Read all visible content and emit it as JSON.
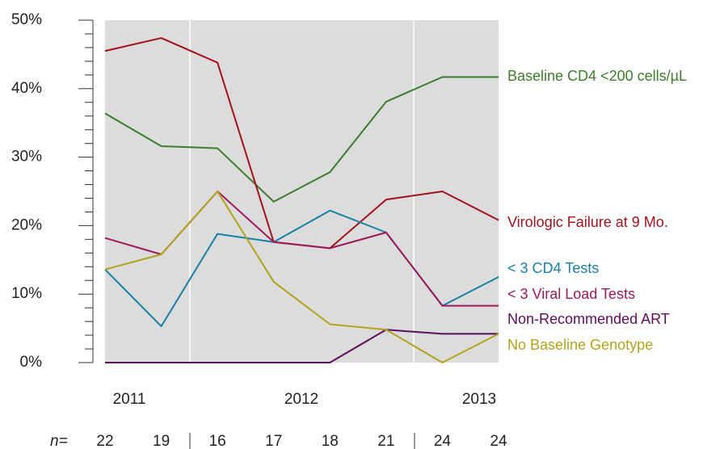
{
  "chart_data": {
    "type": "line",
    "categories": [
      null,
      null,
      null,
      null,
      null,
      null,
      null,
      null
    ],
    "year_labels": [
      "2011",
      "2012",
      "2013"
    ],
    "n_label": "n=",
    "n_values": [
      22,
      19,
      16,
      17,
      18,
      21,
      24,
      24
    ],
    "ylim": [
      0,
      50
    ],
    "yticks": [
      {
        "value": 0,
        "label": "0%"
      },
      {
        "value": 10,
        "label": "10%"
      },
      {
        "value": 20,
        "label": "20%"
      },
      {
        "value": 30,
        "label": "30%"
      },
      {
        "value": 40,
        "label": "40%"
      },
      {
        "value": 50,
        "label": "50%"
      }
    ],
    "minor_yticks": [
      2,
      4,
      6,
      8,
      12,
      14,
      16,
      18,
      22,
      24,
      26,
      28,
      32,
      34,
      36,
      38,
      42,
      44,
      46,
      48
    ],
    "grid": false,
    "series": [
      {
        "name": "Baseline CD4 <200 cells/µL",
        "color": "#3b7d2c",
        "values": [
          36.4,
          31.6,
          31.3,
          23.5,
          27.8,
          38.1,
          41.7,
          41.7
        ]
      },
      {
        "name": "Virologic Failure at 9 Mo.",
        "color": "#a5111b",
        "values": [
          45.5,
          47.4,
          43.8,
          17.6,
          16.7,
          23.8,
          25,
          20.8
        ]
      },
      {
        "name": "< 3 CD4 Tests",
        "color": "#1a80a6",
        "values": [
          13.6,
          5.3,
          18.8,
          17.6,
          22.2,
          19.0,
          8.3,
          12.5
        ]
      },
      {
        "name": "< 3 Viral Load Tests",
        "color": "#9c1a5c",
        "values": [
          18.2,
          15.8,
          25,
          17.6,
          16.7,
          19.0,
          8.3,
          8.3
        ]
      },
      {
        "name": "Non-Recommended ART",
        "color": "#5e0d5e",
        "values": [
          0,
          0,
          0,
          0,
          0,
          4.8,
          4.2,
          4.2
        ]
      },
      {
        "name": "No Baseline Genotype",
        "color": "#b3a21a",
        "values": [
          13.6,
          15.8,
          25,
          11.8,
          5.6,
          4.8,
          0,
          4.2
        ]
      }
    ]
  }
}
